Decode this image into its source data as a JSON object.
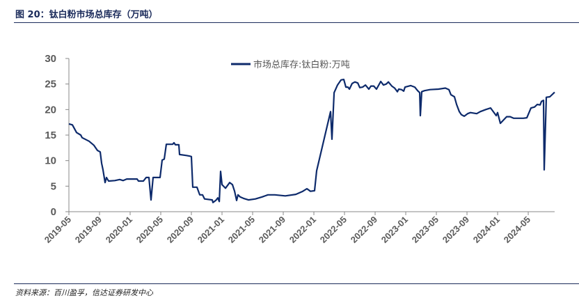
{
  "header": {
    "title": "图 20：钛白粉市场总库存（万吨）"
  },
  "footer": {
    "source": "资料来源：百川盈孚，信达证券研发中心"
  },
  "chart_data": {
    "type": "line",
    "title": "",
    "xlabel": "",
    "ylabel": "",
    "x_unit": "months since 2019-05",
    "xlim": [
      0,
      63.45
    ],
    "ylim": [
      0,
      30
    ],
    "yticks": [
      0,
      5,
      10,
      15,
      20,
      25,
      30
    ],
    "xtick_labels": [
      "2019-05",
      "2019-09",
      "2020-01",
      "2020-05",
      "2020-09",
      "2021-01",
      "2021-05",
      "2021-09",
      "2022-01",
      "2022-05",
      "2022-09",
      "2023-01",
      "2023-05",
      "2023-09",
      "2024-01",
      "2024-05"
    ],
    "legend_placement": "top-center",
    "grid": false,
    "series": [
      {
        "name": "市场总库存:钛白粉:万吨",
        "color": "#0d2a6b",
        "points": [
          [
            0,
            17.2
          ],
          [
            0.45,
            17
          ],
          [
            1,
            15.5
          ],
          [
            1.55,
            15
          ],
          [
            1.73,
            14.5
          ],
          [
            2.64,
            13.8
          ],
          [
            3.27,
            13
          ],
          [
            3.73,
            12
          ],
          [
            4.09,
            11.7
          ],
          [
            4.27,
            9.5
          ],
          [
            4.45,
            8.2
          ],
          [
            4.73,
            5.7
          ],
          [
            4.91,
            6.7
          ],
          [
            5.18,
            6
          ],
          [
            6,
            6.1
          ],
          [
            6.64,
            6.3
          ],
          [
            7.09,
            6.1
          ],
          [
            7.55,
            6.4
          ],
          [
            8.27,
            6.4
          ],
          [
            8.91,
            6.4
          ],
          [
            9.09,
            6
          ],
          [
            9.73,
            6
          ],
          [
            10.09,
            6.7
          ],
          [
            10.45,
            6.7
          ],
          [
            10.73,
            2.3
          ],
          [
            11,
            6.7
          ],
          [
            11.91,
            6.7
          ],
          [
            12.18,
            10.1
          ],
          [
            12.45,
            10.3
          ],
          [
            12.73,
            13.2
          ],
          [
            13.55,
            13.2
          ],
          [
            13.73,
            13.5
          ],
          [
            13.91,
            13.1
          ],
          [
            14.36,
            13.1
          ],
          [
            14.45,
            11.2
          ],
          [
            15.36,
            11
          ],
          [
            15.73,
            10.9
          ],
          [
            16,
            10.8
          ],
          [
            16.18,
            4.8
          ],
          [
            16.73,
            4.8
          ],
          [
            17.09,
            3.3
          ],
          [
            17.45,
            3.3
          ],
          [
            17.73,
            2.5
          ],
          [
            18.73,
            2.3
          ],
          [
            18.82,
            1.8
          ],
          [
            19.18,
            2.2
          ],
          [
            19.45,
            2.7
          ],
          [
            19.64,
            2
          ],
          [
            19.82,
            7.9
          ],
          [
            20,
            5.3
          ],
          [
            20.45,
            4.6
          ],
          [
            21,
            5.7
          ],
          [
            21.36,
            5.3
          ],
          [
            21.64,
            4
          ],
          [
            21.91,
            2.2
          ],
          [
            22.09,
            3.3
          ],
          [
            22.36,
            2.9
          ],
          [
            22.82,
            2.6
          ],
          [
            23.45,
            2.3
          ],
          [
            24.36,
            2.5
          ],
          [
            25.27,
            2.9
          ],
          [
            26,
            3.3
          ],
          [
            26.91,
            3.3
          ],
          [
            28.27,
            3.1
          ],
          [
            29.64,
            3.4
          ],
          [
            30.55,
            4
          ],
          [
            31.09,
            4.5
          ],
          [
            31.55,
            4
          ],
          [
            32.09,
            4.1
          ],
          [
            32.36,
            8
          ],
          [
            34.18,
            19.6
          ],
          [
            34.36,
            14.2
          ],
          [
            34.64,
            23.3
          ],
          [
            35.09,
            24.8
          ],
          [
            35.55,
            25.8
          ],
          [
            35.91,
            25.9
          ],
          [
            36.18,
            24.4
          ],
          [
            36.45,
            24.4
          ],
          [
            36.64,
            24
          ],
          [
            37,
            25.1
          ],
          [
            37.36,
            25.4
          ],
          [
            37.73,
            25.2
          ],
          [
            38,
            24.3
          ],
          [
            38.36,
            24.4
          ],
          [
            38.73,
            24.8
          ],
          [
            39.18,
            24
          ],
          [
            39.45,
            24.6
          ],
          [
            39.82,
            24.6
          ],
          [
            40.18,
            24
          ],
          [
            40.73,
            25.5
          ],
          [
            41.09,
            24.8
          ],
          [
            41.45,
            25
          ],
          [
            41.73,
            25.4
          ],
          [
            42.18,
            24.6
          ],
          [
            42.55,
            24.2
          ],
          [
            42.91,
            23.5
          ],
          [
            43.09,
            24
          ],
          [
            43.45,
            23.9
          ],
          [
            43.73,
            23.6
          ],
          [
            43.91,
            24.4
          ],
          [
            44.64,
            24.7
          ],
          [
            45.18,
            24.4
          ],
          [
            45.55,
            23.7
          ],
          [
            45.82,
            23.3
          ],
          [
            45.91,
            18.8
          ],
          [
            46.09,
            23.5
          ],
          [
            46.45,
            23.7
          ],
          [
            47.18,
            23.9
          ],
          [
            48.27,
            24
          ],
          [
            49.18,
            24.2
          ],
          [
            49.64,
            23.9
          ],
          [
            49.91,
            22.9
          ],
          [
            50.36,
            22.5
          ],
          [
            50.64,
            21
          ],
          [
            51,
            19.6
          ],
          [
            51.27,
            19
          ],
          [
            51.64,
            18.7
          ],
          [
            52.09,
            19.2
          ],
          [
            52.45,
            19.4
          ],
          [
            53.27,
            19.2
          ],
          [
            53.73,
            19.6
          ],
          [
            54.45,
            20
          ],
          [
            55.09,
            20.3
          ],
          [
            55.82,
            18.8
          ],
          [
            56,
            19.4
          ],
          [
            56.36,
            17.3
          ],
          [
            57.18,
            18.6
          ],
          [
            57.64,
            18.6
          ],
          [
            58.09,
            18.3
          ],
          [
            58.64,
            18.3
          ],
          [
            59.36,
            18.3
          ],
          [
            59.82,
            18.4
          ],
          [
            60.36,
            20.3
          ],
          [
            60.82,
            20.5
          ],
          [
            61.18,
            21
          ],
          [
            61.55,
            20.9
          ],
          [
            61.73,
            21.6
          ],
          [
            62,
            21.8
          ],
          [
            62.09,
            8.2
          ],
          [
            62.36,
            22.4
          ],
          [
            62.82,
            22.5
          ],
          [
            63.45,
            23.4
          ]
        ]
      }
    ]
  }
}
